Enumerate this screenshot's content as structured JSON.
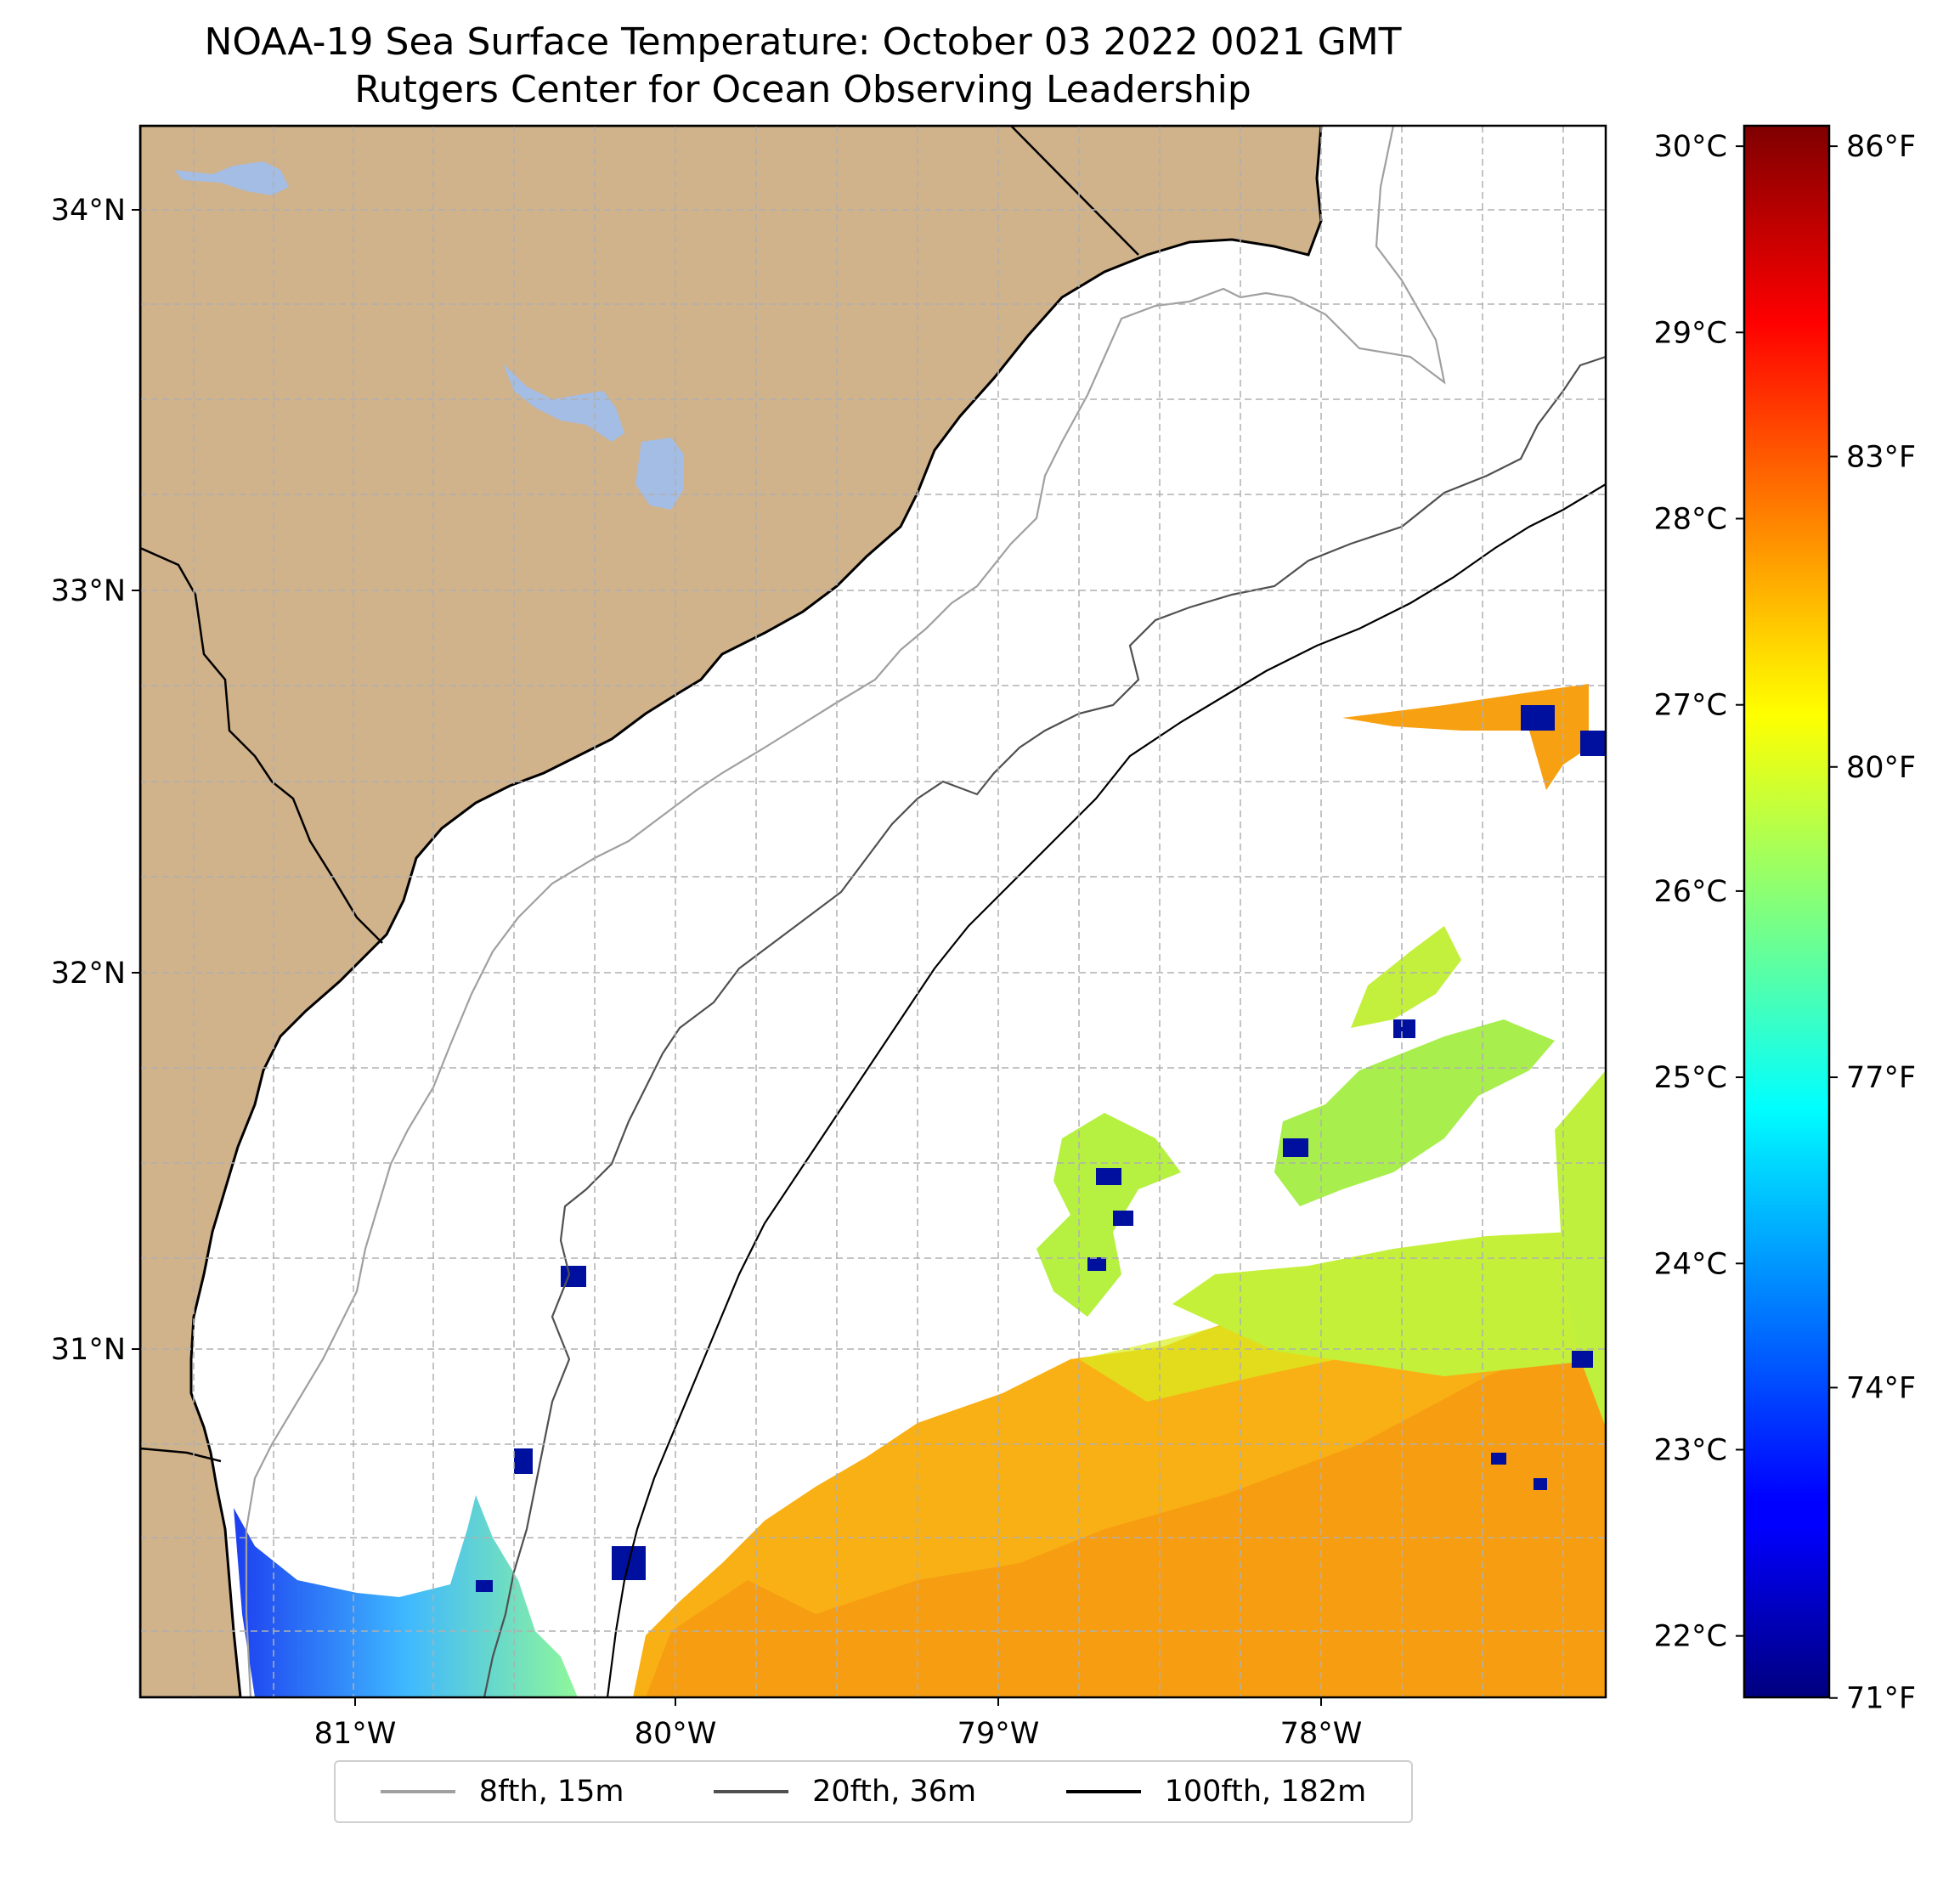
{
  "title": {
    "line1": "NOAA-19 Sea Surface Temperature: October 03 2022 0021 GMT",
    "line2": "Rutgers Center for Ocean Observing Leadership"
  },
  "map": {
    "lat_range": [
      30.1,
      34.22
    ],
    "lon_range": [
      -81.68,
      -77.12
    ],
    "latitude_labels": [
      "34°N",
      "33°N",
      "32°N",
      "31°N"
    ],
    "latitude_values": [
      34,
      33,
      32,
      31
    ],
    "longitude_labels": [
      "81°W",
      "80°W",
      "79°W",
      "78°W"
    ],
    "longitude_values": [
      -81,
      -80,
      -79,
      -78
    ],
    "gridlines": "dashed",
    "land_color": "#d0b28b",
    "water_body_color": "#a3bde5"
  },
  "colorbar": {
    "celsius_labels": [
      "30°C",
      "29°C",
      "28°C",
      "27°C",
      "26°C",
      "25°C",
      "24°C",
      "23°C",
      "22°C"
    ],
    "celsius_values": [
      30,
      29,
      28,
      27,
      26,
      25,
      24,
      23,
      22
    ],
    "fahrenheit_labels": [
      "86°F",
      "83°F",
      "80°F",
      "77°F",
      "74°F",
      "71°F"
    ],
    "fahrenheit_values": [
      86,
      83,
      80,
      77,
      74,
      71
    ],
    "range_celsius": [
      21.67,
      30.11
    ],
    "colormap": "jet"
  },
  "legend": {
    "items": [
      {
        "label": "8fth, 15m",
        "color": "#a0a0a0"
      },
      {
        "label": "20fth, 36m",
        "color": "#505050"
      },
      {
        "label": "100fth, 182m",
        "color": "#000000"
      }
    ]
  }
}
